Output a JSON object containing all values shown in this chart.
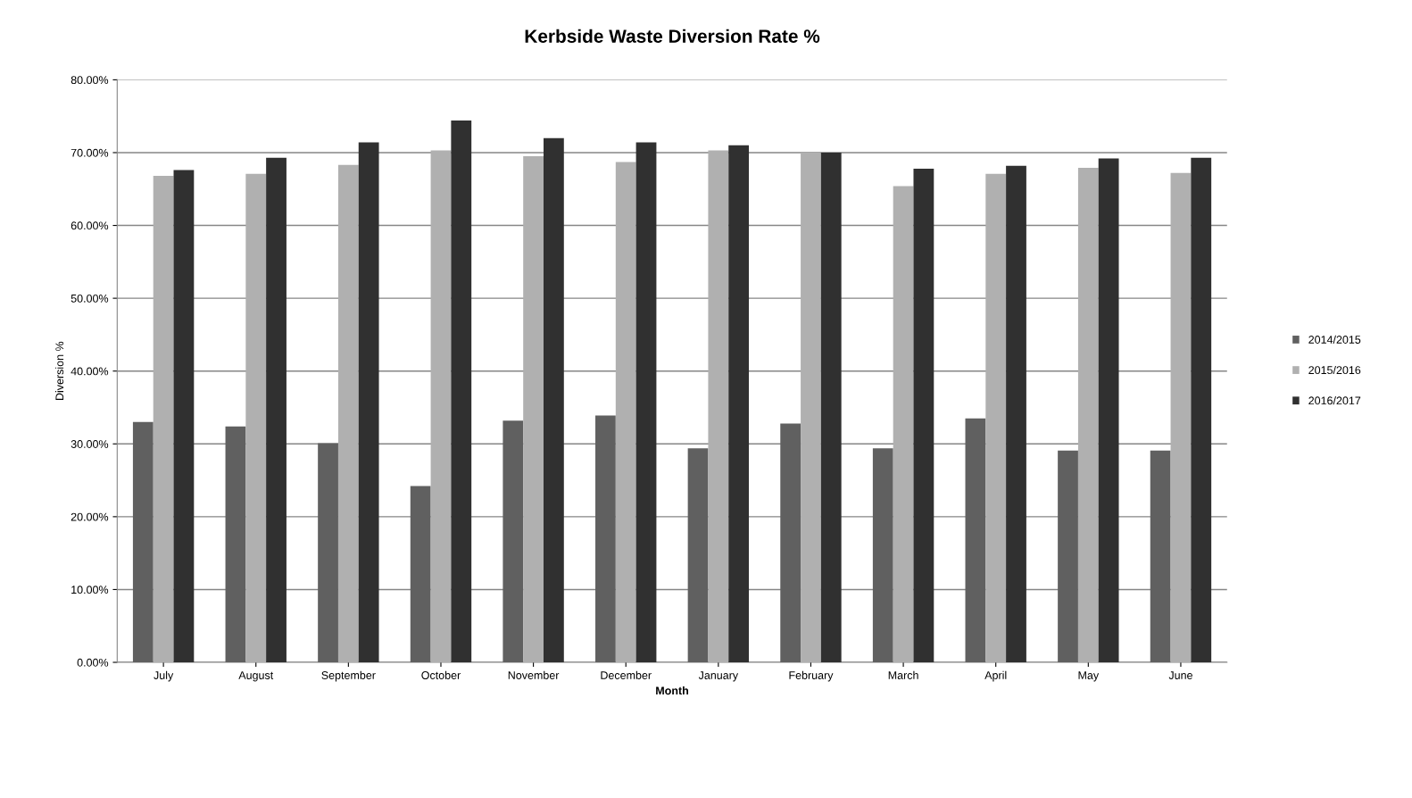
{
  "chart_data": {
    "type": "bar",
    "title": "Kerbside Waste Diversion Rate %",
    "xlabel": "Month",
    "ylabel": "Diversion %",
    "categories": [
      "July",
      "August",
      "September",
      "October",
      "November",
      "December",
      "January",
      "February",
      "March",
      "April",
      "May",
      "June"
    ],
    "series": [
      {
        "name": "2014/2015",
        "color": "#606060",
        "values": [
          33.0,
          32.4,
          30.1,
          24.2,
          33.2,
          33.9,
          29.4,
          32.8,
          29.4,
          33.5,
          29.1,
          29.1
        ]
      },
      {
        "name": "2015/2016",
        "color": "#b0b0b0",
        "values": [
          66.8,
          67.1,
          68.3,
          70.3,
          69.5,
          68.7,
          70.3,
          70.0,
          65.4,
          67.1,
          67.9,
          67.2
        ]
      },
      {
        "name": "2016/2017",
        "color": "#303030",
        "values": [
          67.6,
          69.3,
          71.4,
          74.4,
          72.0,
          71.4,
          71.0,
          70.0,
          67.8,
          68.2,
          69.2,
          69.3
        ]
      }
    ],
    "ylim": [
      0,
      80
    ],
    "yticks": [
      {
        "value": 0,
        "label": "0.00%"
      },
      {
        "value": 10,
        "label": "10.00%"
      },
      {
        "value": 20,
        "label": "20.00%"
      },
      {
        "value": 30,
        "label": "30.00%"
      },
      {
        "value": 40,
        "label": "40.00%"
      },
      {
        "value": 50,
        "label": "50.00%"
      },
      {
        "value": 60,
        "label": "60.00%"
      },
      {
        "value": 70,
        "label": "70.00%"
      },
      {
        "value": 80,
        "label": "80.00%"
      }
    ],
    "grid": "y",
    "legend": "right"
  }
}
